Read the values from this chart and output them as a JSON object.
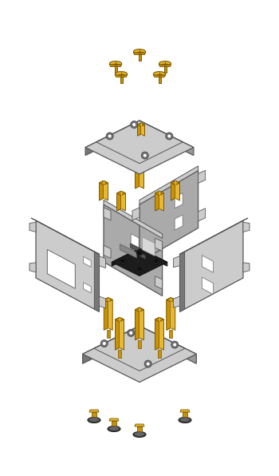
{
  "bg": "#ffffff",
  "pc": "#aaaaaa",
  "ps": "#777777",
  "pl": "#cccccc",
  "sc": "#c8920a",
  "ss": "#7a5800",
  "sl": "#e8b830",
  "rc": "#444444",
  "rl": "#666666",
  "pcb_dark": "#1c1c1c",
  "pcb_side": "#2a2a2a",
  "chip_white": "#d8d8d8",
  "chip_gray": "#555555"
}
